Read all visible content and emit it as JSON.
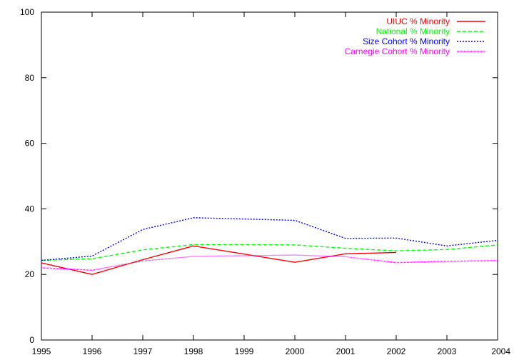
{
  "chart_data": {
    "type": "line",
    "x": [
      1995,
      1996,
      1997,
      1998,
      1999,
      2000,
      2001,
      2002,
      2003,
      2004
    ],
    "xlim": [
      1995,
      2004
    ],
    "ylim": [
      0,
      100
    ],
    "xticks": [
      "1995",
      "1996",
      "1997",
      "1998",
      "1999",
      "2000",
      "2001",
      "2002",
      "2003",
      "2004"
    ],
    "yticks": [
      "0",
      "20",
      "40",
      "60",
      "80",
      "100"
    ],
    "grid": false,
    "legend_position": "top-right",
    "series": [
      {
        "name": "UIUC % Minority",
        "color": "#ff0000",
        "dash": "solid",
        "values": [
          23.5,
          20.0,
          24.5,
          28.7,
          26.2,
          23.7,
          26.3,
          26.7,
          null,
          null
        ]
      },
      {
        "name": "National % Minority",
        "color": "#00ff00",
        "dash": "dashed",
        "values": [
          24.3,
          24.8,
          27.5,
          29.1,
          29.1,
          29.0,
          28.0,
          27.2,
          27.6,
          29.0
        ]
      },
      {
        "name": "Size Cohort % Minority",
        "color": "#0000ff",
        "dash": "dotted",
        "values": [
          24.3,
          25.6,
          33.7,
          37.3,
          36.9,
          36.5,
          31.0,
          31.1,
          28.7,
          30.4
        ]
      },
      {
        "name": "Carnegie Cohort % Minority",
        "color": "#ff00ff",
        "dash": "fine-dotted",
        "values": [
          22.0,
          21.3,
          24.1,
          25.5,
          25.7,
          25.9,
          25.4,
          23.6,
          24.0,
          24.2
        ]
      }
    ]
  }
}
